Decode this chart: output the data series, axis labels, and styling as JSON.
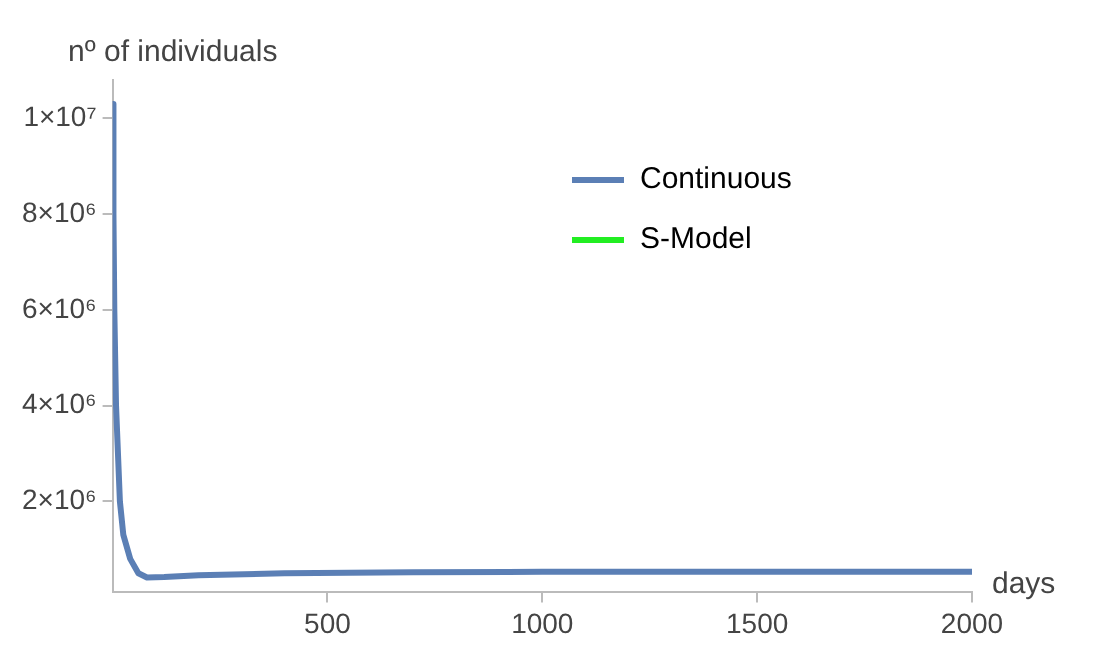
{
  "chart_data": {
    "type": "line",
    "ylabel": "nº of individuals",
    "xlabel": "days",
    "xlim": [
      0,
      2000
    ],
    "xticks": [
      500,
      1000,
      1500,
      2000
    ],
    "ylim": [
      100000,
      10800000
    ],
    "yticks": [
      {
        "value": 2000000,
        "label": "2×10⁶"
      },
      {
        "value": 4000000,
        "label": "4×10⁶"
      },
      {
        "value": 6000000,
        "label": "6×10⁶"
      },
      {
        "value": 8000000,
        "label": "8×10⁶"
      },
      {
        "value": 10000000,
        "label": "1×10⁷"
      }
    ],
    "grid": false,
    "legend": "top right",
    "marker": "none",
    "line_style": "solid",
    "series": [
      {
        "name": "Continuous",
        "color": "#5b7fb5",
        "x": [
          0,
          2,
          4,
          8,
          17,
          25,
          41,
          60,
          80,
          120,
          200,
          400,
          700,
          1000,
          1500,
          2000
        ],
        "values": [
          10300000,
          8000000,
          6000000,
          4000000,
          2000000,
          1300000,
          800000,
          500000,
          410000,
          420000,
          460000,
          500000,
          520000,
          530000,
          530000,
          530000
        ]
      },
      {
        "name": "S-Model",
        "color": "#22ee22"
      }
    ]
  }
}
